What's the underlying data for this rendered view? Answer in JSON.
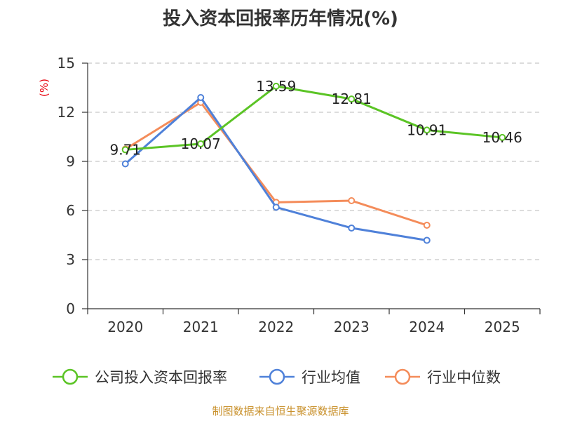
{
  "chart_data": {
    "type": "line",
    "title": "投入资本回报率历年情况(%)",
    "ylabel": "(%)",
    "xlabel": "",
    "categories": [
      "2020",
      "2021",
      "2022",
      "2023",
      "2024",
      "2025"
    ],
    "ylim": [
      0,
      15
    ],
    "yticks": [
      0,
      3,
      6,
      9,
      12,
      15
    ],
    "grid": "horizontal-dashed",
    "legend_position": "bottom",
    "series": [
      {
        "name": "公司投入资本回报率",
        "color": "#5bc425",
        "values": [
          9.71,
          10.07,
          13.59,
          12.81,
          10.91,
          10.46
        ],
        "labels": [
          "9.71",
          "10.07",
          "13.59",
          "12.81",
          "10.91",
          "10.46"
        ]
      },
      {
        "name": "行业均值",
        "color": "#4f81d9",
        "values": [
          8.85,
          12.9,
          6.2,
          4.93,
          4.18,
          null
        ]
      },
      {
        "name": "行业中位数",
        "color": "#f48c5a",
        "values": [
          9.75,
          12.6,
          6.5,
          6.6,
          5.1,
          null
        ]
      }
    ],
    "source": "制图数据来自恒生聚源数据库"
  }
}
